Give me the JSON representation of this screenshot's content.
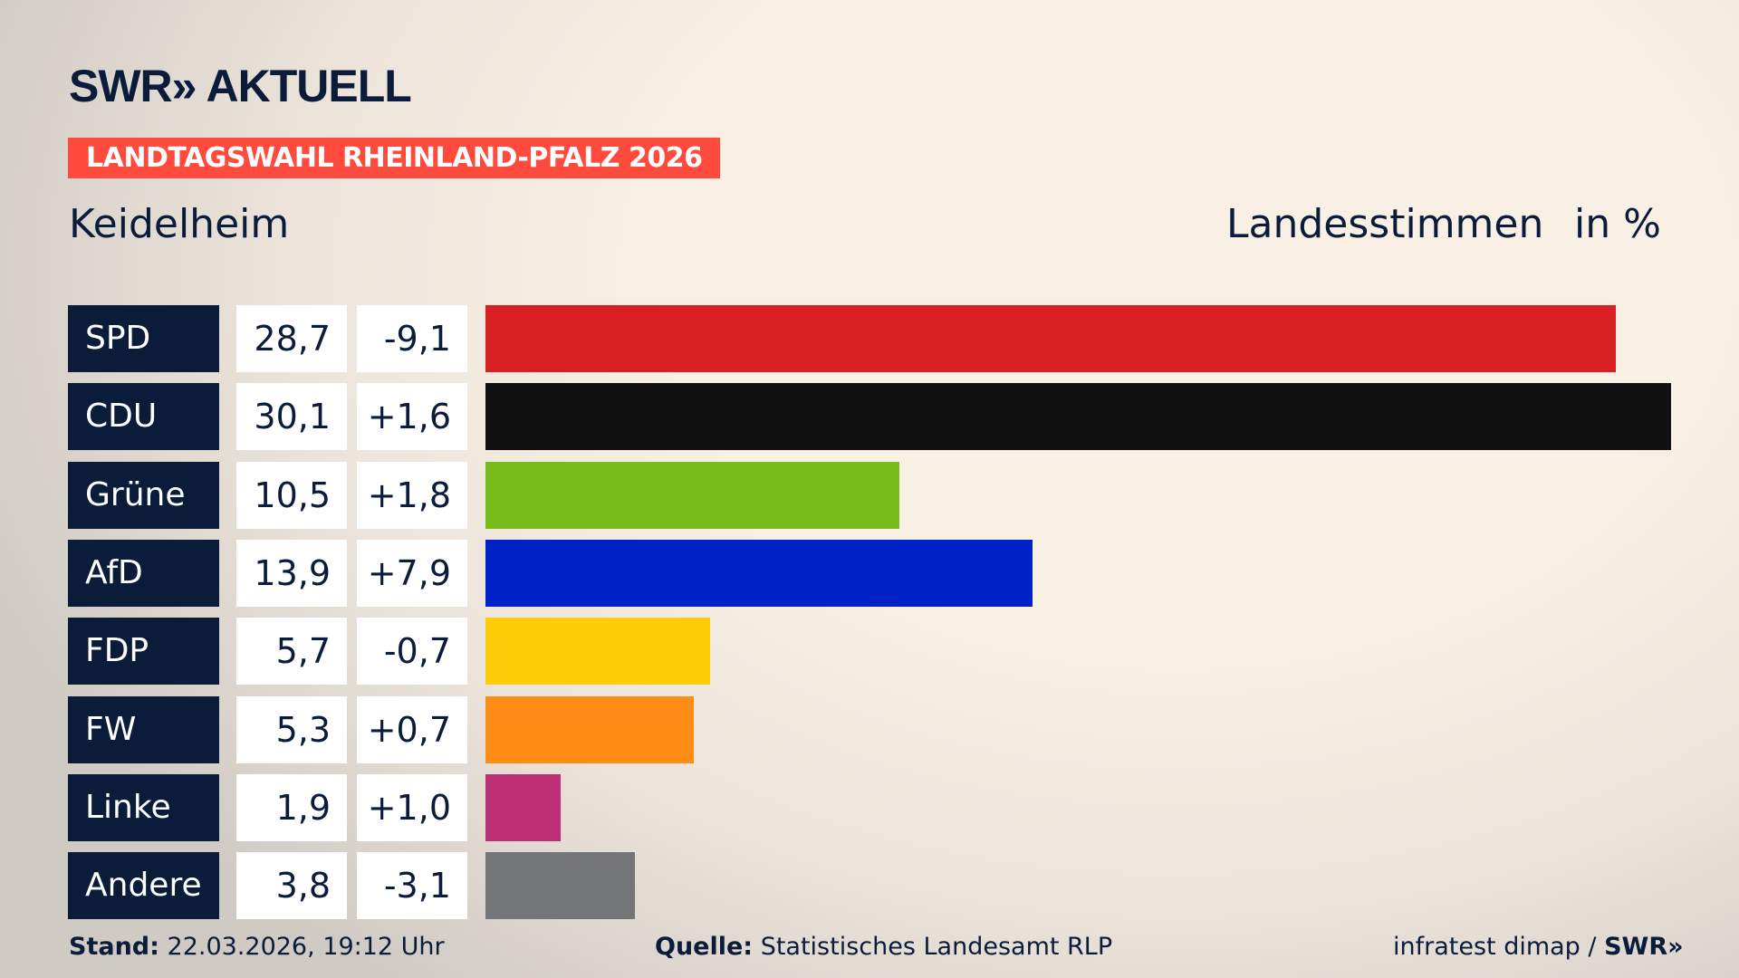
{
  "header": {
    "logo": "SWR» AKTUELL",
    "banner": "LANDTAGSWAHL RHEINLAND-PFALZ 2026",
    "region": "Keidelheim",
    "vote_type": "Landesstimmen",
    "unit": "in %"
  },
  "chart_data": {
    "type": "bar",
    "orientation": "horizontal",
    "categories": [
      "SPD",
      "CDU",
      "Grüne",
      "AfD",
      "FDP",
      "FW",
      "Linke",
      "Andere"
    ],
    "values": [
      28.7,
      30.1,
      10.5,
      13.9,
      5.7,
      5.3,
      1.9,
      3.8
    ],
    "value_labels": [
      "28,7",
      "30,1",
      "10,5",
      "13,9",
      "5,7",
      "5,3",
      "1,9",
      "3,8"
    ],
    "diff_labels": [
      "-9,1",
      "+1,6",
      "+1,8",
      "+7,9",
      "-0,7",
      "+0,7",
      "+1,0",
      "-3,1"
    ],
    "differences": [
      -9.1,
      1.6,
      1.8,
      7.9,
      -0.7,
      0.7,
      1.0,
      -3.1
    ],
    "colors": [
      "#d81f21",
      "#111111",
      "#78bc1b",
      "#0021c7",
      "#ffcc0a",
      "#ff8c17",
      "#be3075",
      "#747577"
    ],
    "xlim": [
      0,
      30.1
    ],
    "title": "",
    "xlabel": "",
    "ylabel": ""
  },
  "footer": {
    "stand_label": "Stand:",
    "stand": "22.03.2026, 19:12 Uhr",
    "source_label": "Quelle:",
    "source": "Statistisches Landesamt RLP",
    "credit": "infratest dimap / ",
    "credit_logo": "SWR»"
  }
}
